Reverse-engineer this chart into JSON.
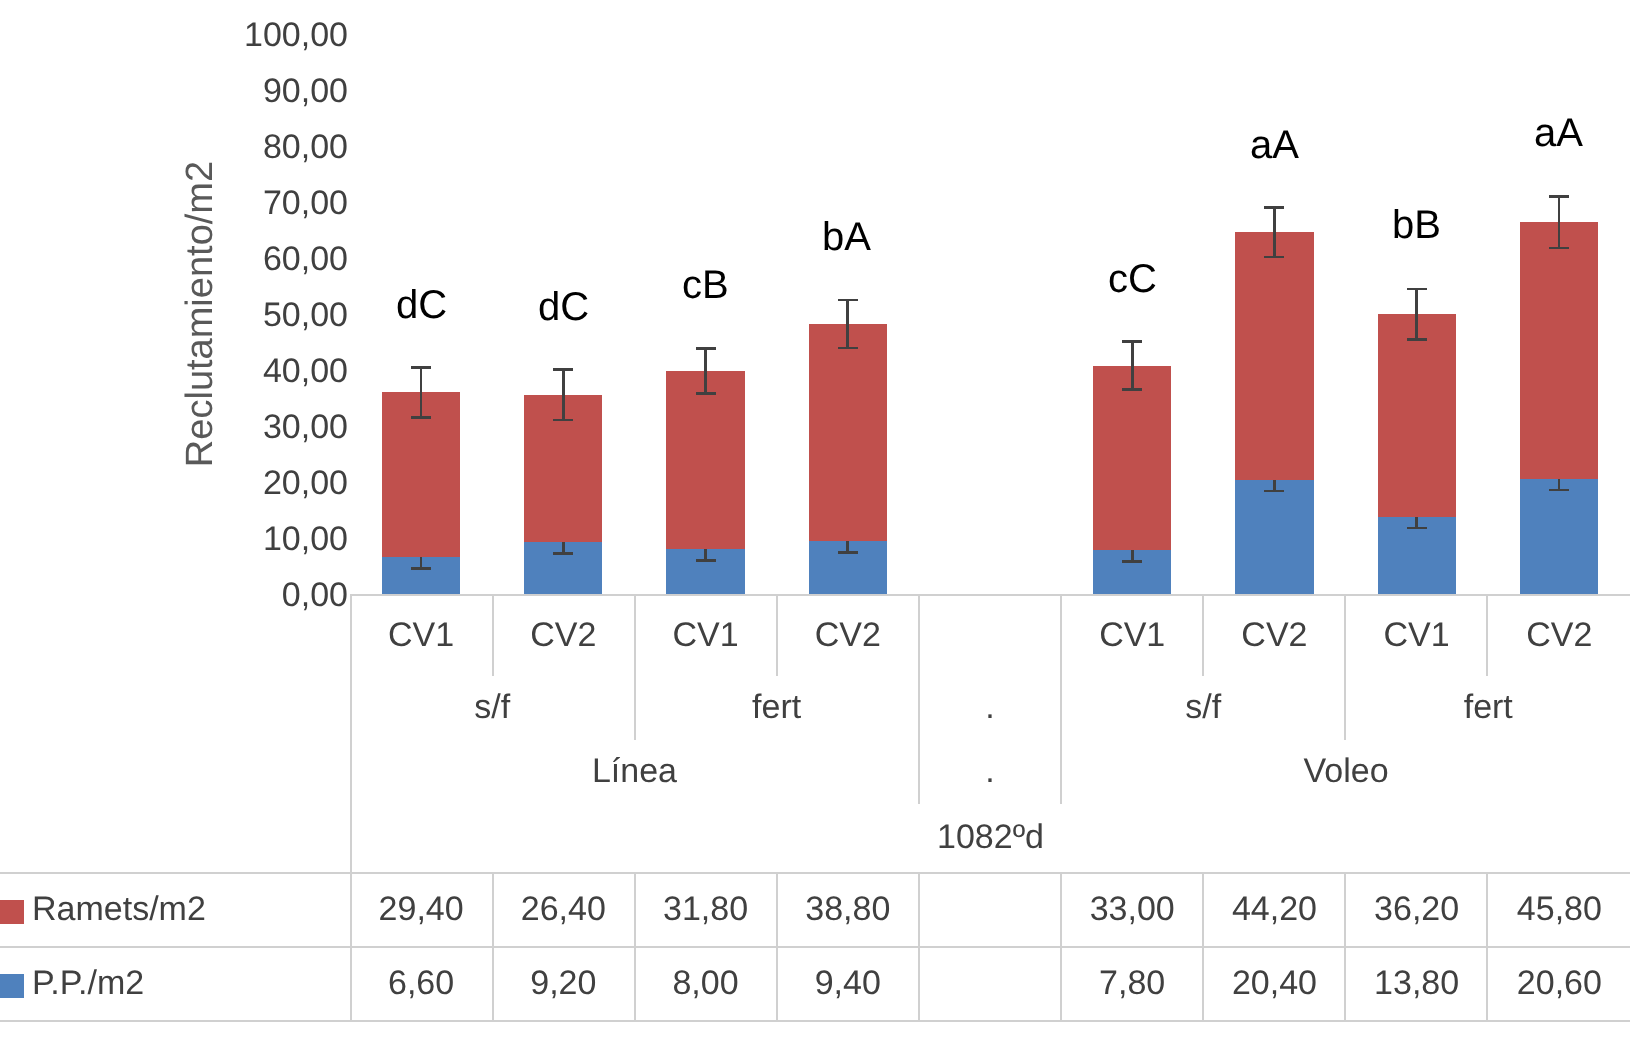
{
  "chart_data": {
    "type": "bar",
    "stacked": true,
    "ylabel": "Reclutamiento/m2",
    "categories": [
      "CV1",
      "CV2",
      "CV1",
      "CV2",
      null,
      "CV1",
      "CV2",
      "CV1",
      "CV2"
    ],
    "series": [
      {
        "name": "P.P./m2",
        "color": "#4f81bd",
        "values": [
          6.6,
          9.2,
          8.0,
          9.4,
          null,
          7.8,
          20.4,
          13.8,
          20.6
        ],
        "errors": [
          2,
          2,
          2,
          2,
          null,
          2,
          2,
          2,
          2
        ],
        "value_labels": [
          "6,60",
          "9,20",
          "8,00",
          "9,40",
          null,
          "7,80",
          "20,40",
          "13,80",
          "20,60"
        ]
      },
      {
        "name": "Ramets/m2",
        "color": "#c0504d",
        "values": [
          29.4,
          26.4,
          31.8,
          38.8,
          null,
          33.0,
          44.2,
          36.2,
          45.8
        ],
        "errors": [
          4.5,
          4.5,
          4,
          4.3,
          null,
          4.3,
          4.4,
          4.5,
          4.6
        ],
        "value_labels": [
          "29,40",
          "26,40",
          "31,80",
          "38,80",
          null,
          "33,00",
          "44,20",
          "36,20",
          "45,80"
        ]
      }
    ],
    "ylim": [
      0,
      100
    ],
    "yticks": [
      {
        "value": 0,
        "label": "0,00"
      },
      {
        "value": 10,
        "label": "10,00"
      },
      {
        "value": 20,
        "label": "20,00"
      },
      {
        "value": 30,
        "label": "30,00"
      },
      {
        "value": 40,
        "label": "40,00"
      },
      {
        "value": 50,
        "label": "50,00"
      },
      {
        "value": 60,
        "label": "60,00"
      },
      {
        "value": 70,
        "label": "70,00"
      },
      {
        "value": 80,
        "label": "80,00"
      },
      {
        "value": 90,
        "label": "90,00"
      },
      {
        "value": 100,
        "label": "100,00"
      }
    ],
    "grid": false,
    "legend": "bottom left",
    "annotations": [
      "dC",
      "dC",
      "cB",
      "bA",
      "cC",
      "aA",
      "bB",
      "aA",
      "s/f",
      "fert",
      ".",
      "s/f",
      "fert",
      "Línea",
      ".",
      "Voleo",
      "1082ºd"
    ]
  }
}
